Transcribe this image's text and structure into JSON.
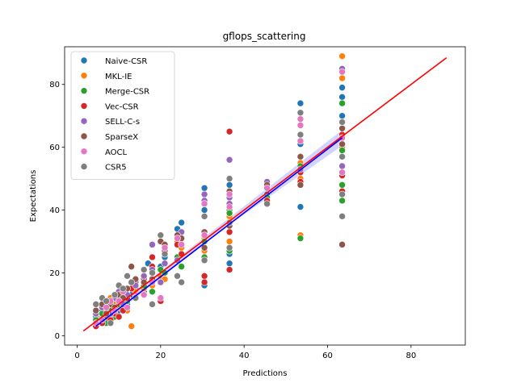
{
  "chart_data": {
    "type": "scatter",
    "title": "gflops_scattering",
    "xlabel": "Predictions",
    "ylabel": "Expectations",
    "xlim": [
      -3,
      93
    ],
    "ylim": [
      -3,
      92
    ],
    "xticks": [
      0,
      20,
      40,
      60,
      80
    ],
    "yticks": [
      0,
      20,
      40,
      60,
      80
    ],
    "grid": false,
    "legend_position": "top-left",
    "series": [
      {
        "name": "Naive-CSR",
        "color": "#1f77b4",
        "points": [
          [
            4.5,
            6
          ],
          [
            6,
            8
          ],
          [
            7,
            5
          ],
          [
            8,
            9
          ],
          [
            9,
            11
          ],
          [
            10,
            8
          ],
          [
            11,
            12
          ],
          [
            12,
            10
          ],
          [
            13,
            13
          ],
          [
            14,
            15
          ],
          [
            16,
            14
          ],
          [
            17,
            23
          ],
          [
            18,
            29
          ],
          [
            20,
            22
          ],
          [
            21,
            25
          ],
          [
            24,
            34
          ],
          [
            25,
            36
          ],
          [
            30.5,
            40
          ],
          [
            30.5,
            47
          ],
          [
            30.5,
            16
          ],
          [
            36.5,
            26
          ],
          [
            36.5,
            23
          ],
          [
            36.5,
            48
          ],
          [
            45.5,
            45
          ],
          [
            53.5,
            74
          ],
          [
            53.5,
            41
          ],
          [
            53.5,
            61
          ],
          [
            63.5,
            79
          ],
          [
            63.5,
            76
          ],
          [
            63.5,
            70
          ]
        ]
      },
      {
        "name": "MKL-IE",
        "color": "#ff7f0e",
        "points": [
          [
            4.5,
            4
          ],
          [
            6,
            6
          ],
          [
            7,
            8
          ],
          [
            8,
            12
          ],
          [
            9,
            10
          ],
          [
            10,
            9
          ],
          [
            11,
            11
          ],
          [
            12,
            8
          ],
          [
            13,
            3
          ],
          [
            14,
            14
          ],
          [
            16,
            15
          ],
          [
            18,
            16
          ],
          [
            20,
            19
          ],
          [
            21,
            18
          ],
          [
            24,
            30
          ],
          [
            25,
            28
          ],
          [
            30.5,
            27
          ],
          [
            30.5,
            31
          ],
          [
            36.5,
            30
          ],
          [
            36.5,
            38
          ],
          [
            36.5,
            46
          ],
          [
            45.5,
            42
          ],
          [
            53.5,
            32
          ],
          [
            53.5,
            50
          ],
          [
            53.5,
            55
          ],
          [
            63.5,
            89
          ],
          [
            63.5,
            82
          ],
          [
            63.5,
            60
          ]
        ]
      },
      {
        "name": "Merge-CSR",
        "color": "#2ca02c",
        "points": [
          [
            4.5,
            5
          ],
          [
            6,
            7
          ],
          [
            7,
            4
          ],
          [
            8,
            8
          ],
          [
            9,
            6
          ],
          [
            10,
            10
          ],
          [
            11,
            9
          ],
          [
            12,
            11
          ],
          [
            14,
            12
          ],
          [
            16,
            16
          ],
          [
            18,
            14
          ],
          [
            20,
            21
          ],
          [
            21,
            20
          ],
          [
            24,
            25
          ],
          [
            25,
            22
          ],
          [
            30.5,
            25
          ],
          [
            30.5,
            30
          ],
          [
            36.5,
            27
          ],
          [
            36.5,
            40
          ],
          [
            36.5,
            39
          ],
          [
            45.5,
            44
          ],
          [
            53.5,
            31
          ],
          [
            53.5,
            54
          ],
          [
            63.5,
            74
          ],
          [
            63.5,
            59
          ],
          [
            63.5,
            48
          ],
          [
            63.5,
            43
          ]
        ]
      },
      {
        "name": "Vec-CSR",
        "color": "#d62728",
        "points": [
          [
            4.5,
            3
          ],
          [
            6,
            4
          ],
          [
            7,
            6
          ],
          [
            8,
            5
          ],
          [
            9,
            7
          ],
          [
            10,
            6
          ],
          [
            11,
            8
          ],
          [
            12,
            12
          ],
          [
            13,
            15
          ],
          [
            14,
            17
          ],
          [
            16,
            18
          ],
          [
            18,
            22
          ],
          [
            18,
            25
          ],
          [
            20,
            11
          ],
          [
            21,
            27
          ],
          [
            24,
            29
          ],
          [
            25,
            26
          ],
          [
            30.5,
            19
          ],
          [
            30.5,
            17
          ],
          [
            36.5,
            21
          ],
          [
            36.5,
            65
          ],
          [
            36.5,
            33
          ],
          [
            45.5,
            43
          ],
          [
            53.5,
            49
          ],
          [
            53.5,
            52
          ],
          [
            63.5,
            51
          ],
          [
            63.5,
            64
          ],
          [
            63.5,
            46
          ]
        ]
      },
      {
        "name": "SELL-C-s",
        "color": "#9467bd",
        "points": [
          [
            4.5,
            7
          ],
          [
            6,
            9
          ],
          [
            7,
            10
          ],
          [
            8,
            7
          ],
          [
            9,
            12
          ],
          [
            10,
            14
          ],
          [
            11,
            10
          ],
          [
            12,
            13
          ],
          [
            14,
            16
          ],
          [
            16,
            19
          ],
          [
            18,
            29
          ],
          [
            18,
            21
          ],
          [
            20,
            17
          ],
          [
            21,
            23
          ],
          [
            24,
            24
          ],
          [
            25,
            33
          ],
          [
            30.5,
            45
          ],
          [
            30.5,
            43
          ],
          [
            36.5,
            56
          ],
          [
            36.5,
            44
          ],
          [
            36.5,
            42
          ],
          [
            45.5,
            49
          ],
          [
            53.5,
            53
          ],
          [
            63.5,
            85
          ],
          [
            63.5,
            66
          ],
          [
            63.5,
            54
          ]
        ]
      },
      {
        "name": "SparseX",
        "color": "#8c564b",
        "points": [
          [
            4.5,
            8
          ],
          [
            6,
            10
          ],
          [
            7,
            7
          ],
          [
            8,
            10
          ],
          [
            9,
            9
          ],
          [
            10,
            13
          ],
          [
            11,
            12
          ],
          [
            12,
            15
          ],
          [
            13,
            22
          ],
          [
            14,
            18
          ],
          [
            16,
            17
          ],
          [
            18,
            18
          ],
          [
            20,
            30
          ],
          [
            21,
            29
          ],
          [
            24,
            32
          ],
          [
            25,
            31
          ],
          [
            30.5,
            33
          ],
          [
            30.5,
            28
          ],
          [
            36.5,
            35
          ],
          [
            36.5,
            46
          ],
          [
            45.5,
            48
          ],
          [
            53.5,
            48
          ],
          [
            53.5,
            57
          ],
          [
            63.5,
            29
          ],
          [
            63.5,
            66
          ],
          [
            63.5,
            61
          ]
        ]
      },
      {
        "name": "AOCL",
        "color": "#e377c2",
        "points": [
          [
            4.5,
            4
          ],
          [
            6,
            5
          ],
          [
            7,
            9
          ],
          [
            8,
            11
          ],
          [
            9,
            8
          ],
          [
            10,
            11
          ],
          [
            11,
            14
          ],
          [
            12,
            9
          ],
          [
            14,
            13
          ],
          [
            16,
            13
          ],
          [
            18,
            17
          ],
          [
            20,
            12
          ],
          [
            21,
            28
          ],
          [
            24,
            31
          ],
          [
            25,
            29
          ],
          [
            30.5,
            42
          ],
          [
            30.5,
            32
          ],
          [
            36.5,
            45
          ],
          [
            36.5,
            41
          ],
          [
            45.5,
            47
          ],
          [
            53.5,
            67
          ],
          [
            53.5,
            62
          ],
          [
            53.5,
            69
          ],
          [
            63.5,
            52
          ],
          [
            63.5,
            84
          ],
          [
            63.5,
            63
          ]
        ]
      },
      {
        "name": "CSR5",
        "color": "#7f7f7f",
        "points": [
          [
            4.5,
            10
          ],
          [
            6,
            12
          ],
          [
            7,
            11
          ],
          [
            8,
            4
          ],
          [
            9,
            13
          ],
          [
            10,
            16
          ],
          [
            11,
            15
          ],
          [
            12,
            19
          ],
          [
            13,
            17
          ],
          [
            14,
            12
          ],
          [
            16,
            21
          ],
          [
            18,
            10
          ],
          [
            18,
            20
          ],
          [
            20,
            32
          ],
          [
            21,
            26
          ],
          [
            24,
            19
          ],
          [
            25,
            17
          ],
          [
            30.5,
            24
          ],
          [
            30.5,
            38
          ],
          [
            36.5,
            36
          ],
          [
            36.5,
            50
          ],
          [
            36.5,
            28
          ],
          [
            45.5,
            42
          ],
          [
            53.5,
            71
          ],
          [
            53.5,
            64
          ],
          [
            63.5,
            68
          ],
          [
            63.5,
            45
          ],
          [
            63.5,
            38
          ],
          [
            63.5,
            57
          ]
        ]
      }
    ],
    "lines": [
      {
        "color": "#ff0000",
        "points": [
          [
            1.5,
            1.5
          ],
          [
            88.5,
            88.5
          ]
        ]
      },
      {
        "color": "#0000ff",
        "points": [
          [
            4.5,
            3
          ],
          [
            63.5,
            63
          ]
        ]
      }
    ],
    "band": {
      "color": "#8080ff",
      "lower": [
        [
          4.5,
          2
        ],
        [
          34,
          33
        ],
        [
          63.5,
          60.5
        ]
      ],
      "upper": [
        [
          4.5,
          4.5
        ],
        [
          34,
          35
        ],
        [
          63.5,
          65.5
        ]
      ]
    }
  }
}
